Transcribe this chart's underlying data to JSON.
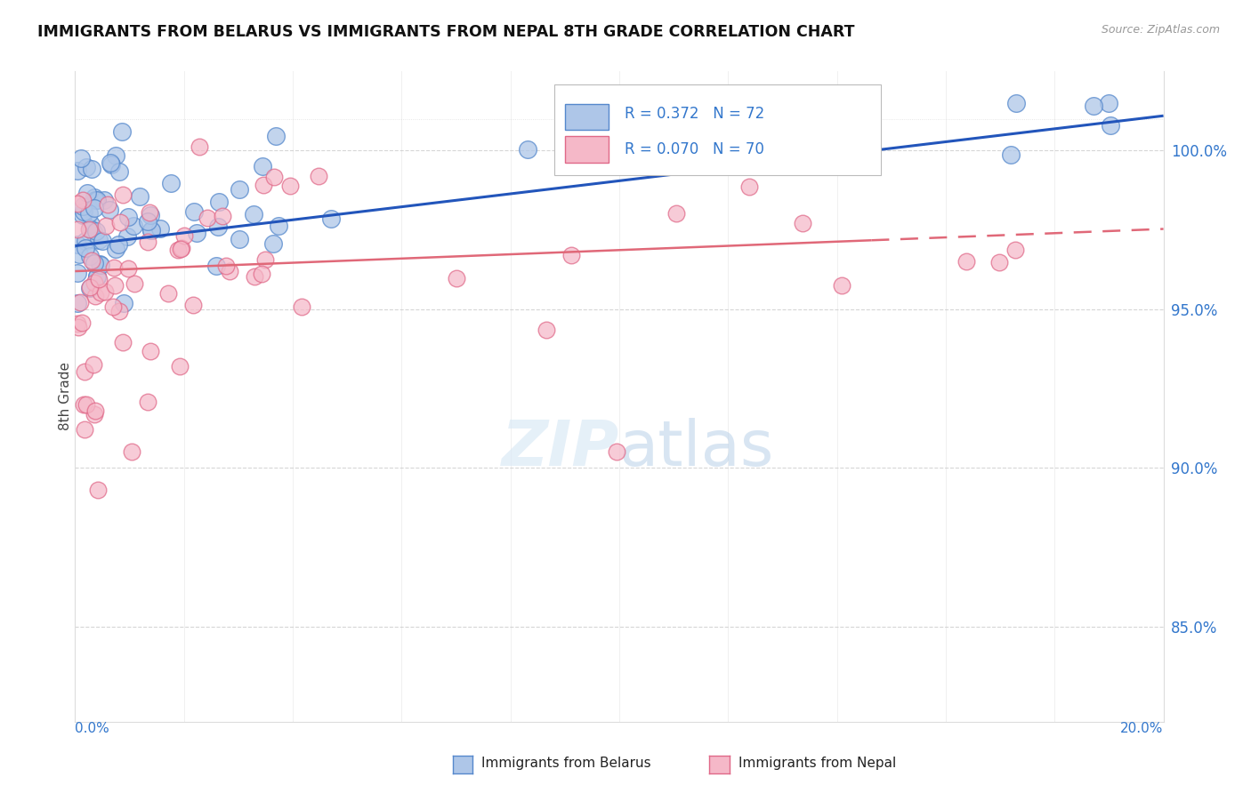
{
  "title": "IMMIGRANTS FROM BELARUS VS IMMIGRANTS FROM NEPAL 8TH GRADE CORRELATION CHART",
  "source_text": "Source: ZipAtlas.com",
  "ylabel": "8th Grade",
  "xlim": [
    0.0,
    20.5
  ],
  "ylim": [
    82.0,
    102.5
  ],
  "y_ticks": [
    85.0,
    90.0,
    95.0,
    100.0
  ],
  "belarus_color": "#aec6e8",
  "nepal_color": "#f5b8c8",
  "belarus_edge": "#5588cc",
  "nepal_edge": "#e06888",
  "trendline_belarus_color": "#2255bb",
  "trendline_nepal_color": "#e06878",
  "legend_line1": "R = 0.372   N = 72",
  "legend_line2": "R = 0.070   N = 70",
  "watermark": "ZIPatlas",
  "bottom_legend_belarus": "Immigrants from Belarus",
  "bottom_legend_nepal": "Immigrants from Nepal"
}
